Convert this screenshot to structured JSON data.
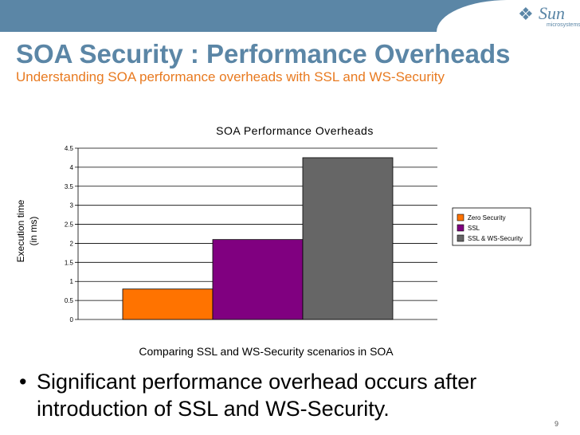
{
  "slide": {
    "title": "SOA Security : Performance Overheads",
    "subtitle": "Understanding SOA performance overheads with SSL and WS-Security",
    "bullet": "Significant  performance overhead occurs after introduction of SSL and WS-Security.",
    "page_number": "9",
    "logo": {
      "brand": "Sun",
      "tagline": "microsystems",
      "icon": "sun-logo-icon"
    },
    "colors": {
      "title": "#5b86a6",
      "subtitle": "#e87a20",
      "band": "#5b86a6"
    }
  },
  "chart_data": {
    "type": "bar",
    "title": "SOA Performance Overheads",
    "xlabel": "Comparing SSL and WS-Security scenarios in SOA",
    "ylabel_lines": [
      "Execution time",
      "(in ms)"
    ],
    "ylim": [
      0,
      4.5
    ],
    "yticks": [
      "0",
      "0.5",
      "1",
      "1.5",
      "2",
      "2.5",
      "3",
      "3.5",
      "4",
      "4.5"
    ],
    "grid": true,
    "legend_position": "right",
    "series": [
      {
        "name": "Zero Security",
        "value": 0.8,
        "color": "#ff7300"
      },
      {
        "name": "SSL",
        "value": 2.1,
        "color": "#800080"
      },
      {
        "name": "SSL & WS-Security",
        "value": 4.25,
        "color": "#666666"
      }
    ]
  }
}
